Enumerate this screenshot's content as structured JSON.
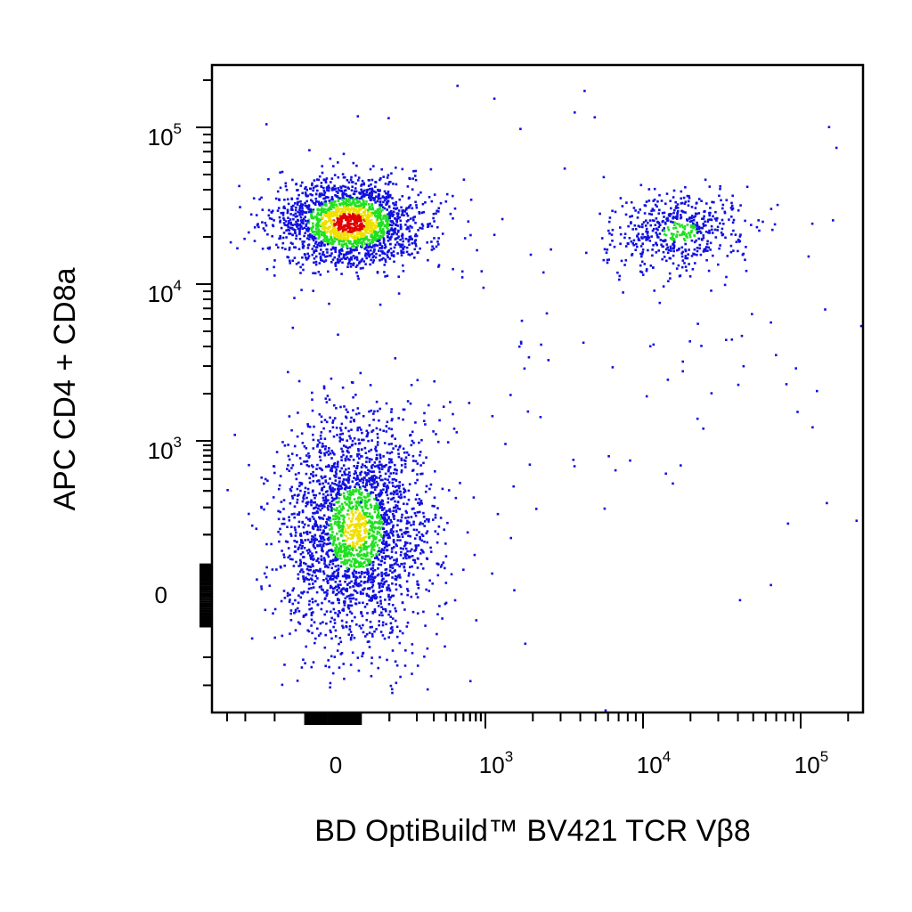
{
  "chart_data": {
    "type": "scatter",
    "plot_style": "flow cytometry pseudocolor dot plot, biexponential axes",
    "xlabel": "BD OptiBuild™ BV421 TCR Vβ8",
    "ylabel": "APC CD4 + CD8a",
    "x_scale": "biexponential",
    "y_scale": "biexponential",
    "xlim": [
      -300,
      200000
    ],
    "ylim": [
      -250,
      250000
    ],
    "x_ticks": [
      {
        "value": 0,
        "base": "0",
        "exp": ""
      },
      {
        "value": 1000,
        "base": "10",
        "exp": "3"
      },
      {
        "value": 10000,
        "base": "10",
        "exp": "4"
      },
      {
        "value": 100000,
        "base": "10",
        "exp": "5"
      }
    ],
    "y_ticks": [
      {
        "value": 0,
        "base": "0",
        "exp": ""
      },
      {
        "value": 1000,
        "base": "10",
        "exp": "3"
      },
      {
        "value": 10000,
        "base": "10",
        "exp": "4"
      },
      {
        "value": 100000,
        "base": "10",
        "exp": "5"
      }
    ],
    "density_colors": {
      "low": "#1010e0",
      "mid": "#20e020",
      "high_mid": "#f0e000",
      "high": "#e00000"
    },
    "grid": false,
    "legend": "none",
    "populations": [
      {
        "x_center": 20,
        "y_center": 25000,
        "density": "high",
        "event_share": 0.38
      },
      {
        "x_center": 30,
        "y_center": 120,
        "density": "high_mid",
        "event_share": 0.49
      },
      {
        "x_center": 17000,
        "y_center": 22000,
        "density": "mid",
        "event_share": 0.1
      },
      {
        "x_center": 3000,
        "y_center": 3000,
        "density": "low",
        "event_share": 0.03
      }
    ]
  }
}
